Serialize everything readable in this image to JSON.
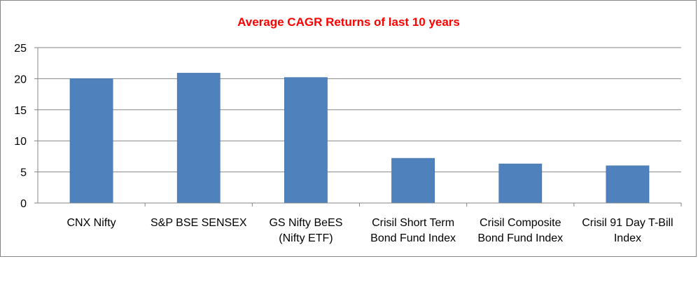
{
  "chart_data": {
    "type": "bar",
    "title": "Average CAGR Returns of last 10 years",
    "categories": [
      [
        "CNX Nifty"
      ],
      [
        "S&P BSE SENSEX"
      ],
      [
        "GS Nifty BeES",
        "(Nifty ETF)"
      ],
      [
        "Crisil Short Term",
        "Bond Fund Index"
      ],
      [
        "Crisil Composite",
        "Bond Fund Index"
      ],
      [
        "Crisil 91 Day T-Bill",
        "Index"
      ]
    ],
    "values": [
      20.0,
      20.9,
      20.2,
      7.2,
      6.3,
      6.0
    ],
    "ylim": [
      0,
      25
    ],
    "yticks": [
      0,
      5,
      10,
      15,
      20,
      25
    ],
    "ytick_labels": [
      "0",
      "5",
      "10",
      "15",
      "20",
      "25"
    ],
    "xlabel": "",
    "ylabel": "",
    "grid": true,
    "legend": "none",
    "colors": {
      "bar": "#4F81BD",
      "bar_edge": "#3A6AA3",
      "title": "#FF0000",
      "grid": "#868686",
      "axis": "#868686"
    }
  }
}
